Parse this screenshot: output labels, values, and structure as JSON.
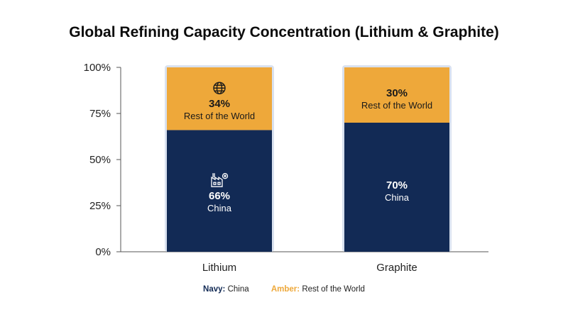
{
  "colors": {
    "china": "#122a55",
    "rest": "#eea83a",
    "glow": "#d9e1ef",
    "axis": "#555555"
  },
  "legend": {
    "china_key": "Navy:",
    "china_label": "China",
    "rest_key": "Amber:",
    "rest_label": "Rest of the World"
  },
  "chart_data": {
    "type": "bar",
    "stacked": true,
    "title": "Global Refining Capacity Concentration (Lithium & Graphite)",
    "categories": [
      "Lithium",
      "Graphite"
    ],
    "series": [
      {
        "name": "China",
        "values": [
          66,
          70
        ],
        "color": "#122a55"
      },
      {
        "name": "Rest of the World",
        "values": [
          34,
          30
        ],
        "color": "#eea83a"
      }
    ],
    "ylim": [
      0,
      100
    ],
    "yticks": [
      "0%",
      "25%",
      "50%",
      "75%",
      "100%"
    ],
    "data_labels": [
      {
        "category": "Lithium",
        "series": "China",
        "value_label": "66%",
        "name_label": "China",
        "icon": "factory-icon"
      },
      {
        "category": "Lithium",
        "series": "Rest of the World",
        "value_label": "34%",
        "name_label": "Rest of the World",
        "icon": "globe-icon"
      },
      {
        "category": "Graphite",
        "series": "China",
        "value_label": "70%",
        "name_label": "China"
      },
      {
        "category": "Graphite",
        "series": "Rest of the World",
        "value_label": "30%",
        "name_label": "Rest of the World"
      }
    ],
    "grid": false,
    "legend_position": "bottom"
  }
}
